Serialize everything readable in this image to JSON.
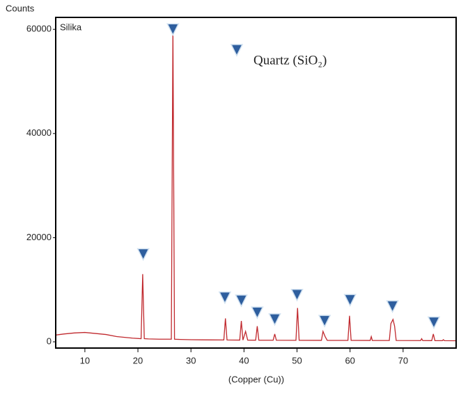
{
  "chart_data": {
    "type": "line",
    "y_label": "Counts",
    "x_label": "(Copper (Cu))",
    "xlim": [
      4.5,
      80
    ],
    "xticks": [
      10,
      20,
      30,
      40,
      50,
      60,
      70
    ],
    "ylim": [
      -1200,
      62300
    ],
    "yticks": [
      0,
      20000,
      40000,
      60000
    ],
    "series": [
      {
        "name": "Silika",
        "color": "#c0282d",
        "type": "line",
        "x": [
          4.5,
          6,
          8,
          10,
          12,
          14,
          16,
          18,
          19,
          20.6,
          20.9,
          21.2,
          22,
          24,
          26.3,
          26.6,
          26.9,
          28,
          30,
          32,
          34,
          36.2,
          36.5,
          36.8,
          38,
          39.2,
          39.5,
          39.8,
          40.3,
          40.7,
          42.2,
          42.5,
          42.8,
          45.5,
          45.8,
          46.1,
          49.8,
          50.1,
          50.4,
          54.6,
          54.9,
          55.3,
          55.7,
          59.6,
          59.9,
          60.2,
          63.8,
          64,
          64.2,
          67.4,
          67.7,
          68.1,
          68.4,
          68.7,
          73.3,
          73.5,
          73.7,
          75.4,
          75.7,
          76,
          77.4,
          77.6,
          77.8,
          80
        ],
        "values": [
          1300,
          1500,
          1700,
          1800,
          1600,
          1400,
          1000,
          800,
          700,
          600,
          13000,
          600,
          550,
          500,
          500,
          60000,
          500,
          450,
          400,
          380,
          360,
          350,
          4500,
          350,
          340,
          330,
          4000,
          330,
          2000,
          320,
          310,
          3000,
          310,
          300,
          1500,
          300,
          290,
          6500,
          290,
          280,
          2000,
          1000,
          280,
          270,
          5000,
          270,
          260,
          1000,
          260,
          250,
          3500,
          4300,
          3000,
          250,
          240,
          600,
          240,
          230,
          1500,
          230,
          220,
          400,
          220,
          200
        ]
      },
      {
        "name": "Quartz (SiO₂)",
        "color": "#2e5e9e",
        "type": "marker",
        "x": [
          21,
          26.6,
          36.4,
          39.5,
          42.5,
          45.8,
          50,
          55.2,
          60,
          68,
          75.8
        ],
        "values": [
          16800,
          60000,
          8500,
          7900,
          5600,
          4300,
          9000,
          4000,
          8000,
          6800,
          3700
        ]
      }
    ]
  }
}
